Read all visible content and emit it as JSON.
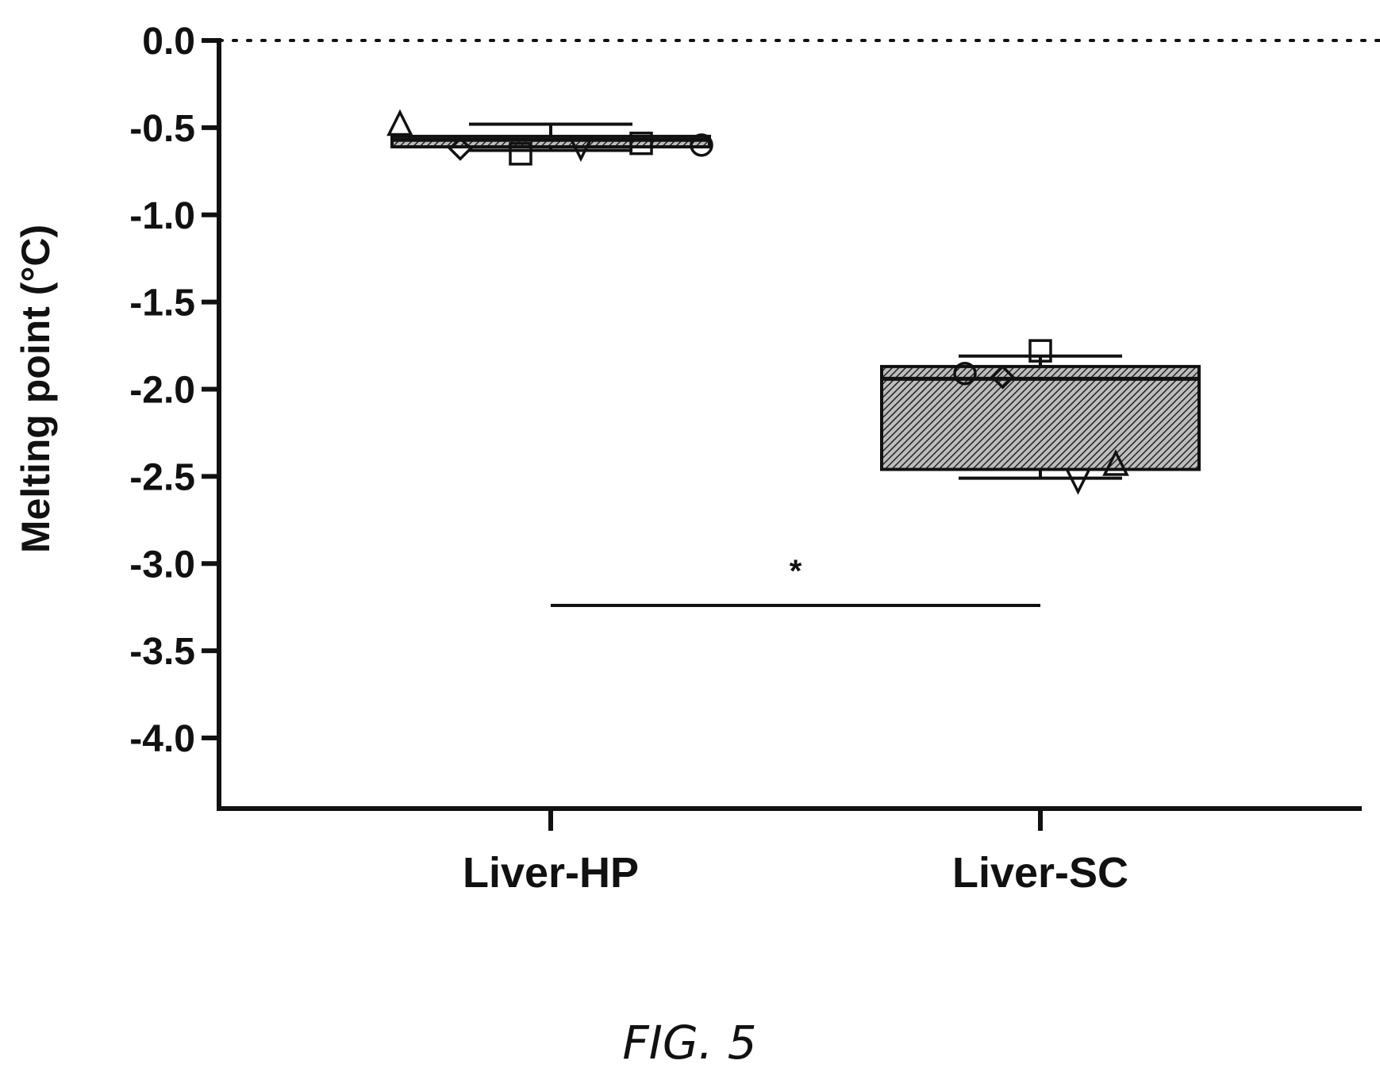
{
  "figure_label": "FIG. 5",
  "chart_data": {
    "type": "box",
    "title": "",
    "xlabel": "",
    "ylabel": "Melting point  (°C)",
    "ylim": [
      -4.4,
      0.0
    ],
    "yticks": [
      0.0,
      -0.5,
      -1.0,
      -1.5,
      -2.0,
      -2.5,
      -3.0,
      -3.5,
      -4.0
    ],
    "ytick_labels": [
      "0.0",
      "-0.5",
      "-1.0",
      "-1.5",
      "-2.0",
      "-2.5",
      "-3.0",
      "-3.5",
      "-4.0"
    ],
    "reference_line": {
      "y": 0.0,
      "style": "dotted"
    },
    "categories": [
      "Liver-HP",
      "Liver-SC"
    ],
    "boxes": [
      {
        "category": "Liver-HP",
        "whisker_high": -0.48,
        "q3": -0.55,
        "median": -0.57,
        "q1": -0.61,
        "whisker_low": -0.63,
        "points": [
          {
            "y": -0.48,
            "marker": "triangle-up"
          },
          {
            "y": -0.62,
            "marker": "diamond"
          },
          {
            "y": -0.65,
            "marker": "square"
          },
          {
            "y": -0.61,
            "marker": "triangle-down"
          },
          {
            "y": -0.59,
            "marker": "square"
          },
          {
            "y": -0.6,
            "marker": "circle"
          }
        ]
      },
      {
        "category": "Liver-SC",
        "whisker_high": -1.81,
        "q3": -1.87,
        "median": -1.94,
        "q1": -2.46,
        "whisker_low": -2.51,
        "points": [
          {
            "y": -1.91,
            "marker": "circle"
          },
          {
            "y": -1.93,
            "marker": "diamond"
          },
          {
            "y": -1.78,
            "marker": "square"
          },
          {
            "y": -2.52,
            "marker": "triangle-down"
          },
          {
            "y": -2.43,
            "marker": "triangle-up"
          }
        ]
      }
    ],
    "significance": {
      "label": "*",
      "y": -3.24,
      "from": "Liver-HP",
      "to": "Liver-SC"
    },
    "colors": {
      "box_fill": "#6f6f6f",
      "ink": "#111111",
      "background": "#ffffff"
    }
  }
}
